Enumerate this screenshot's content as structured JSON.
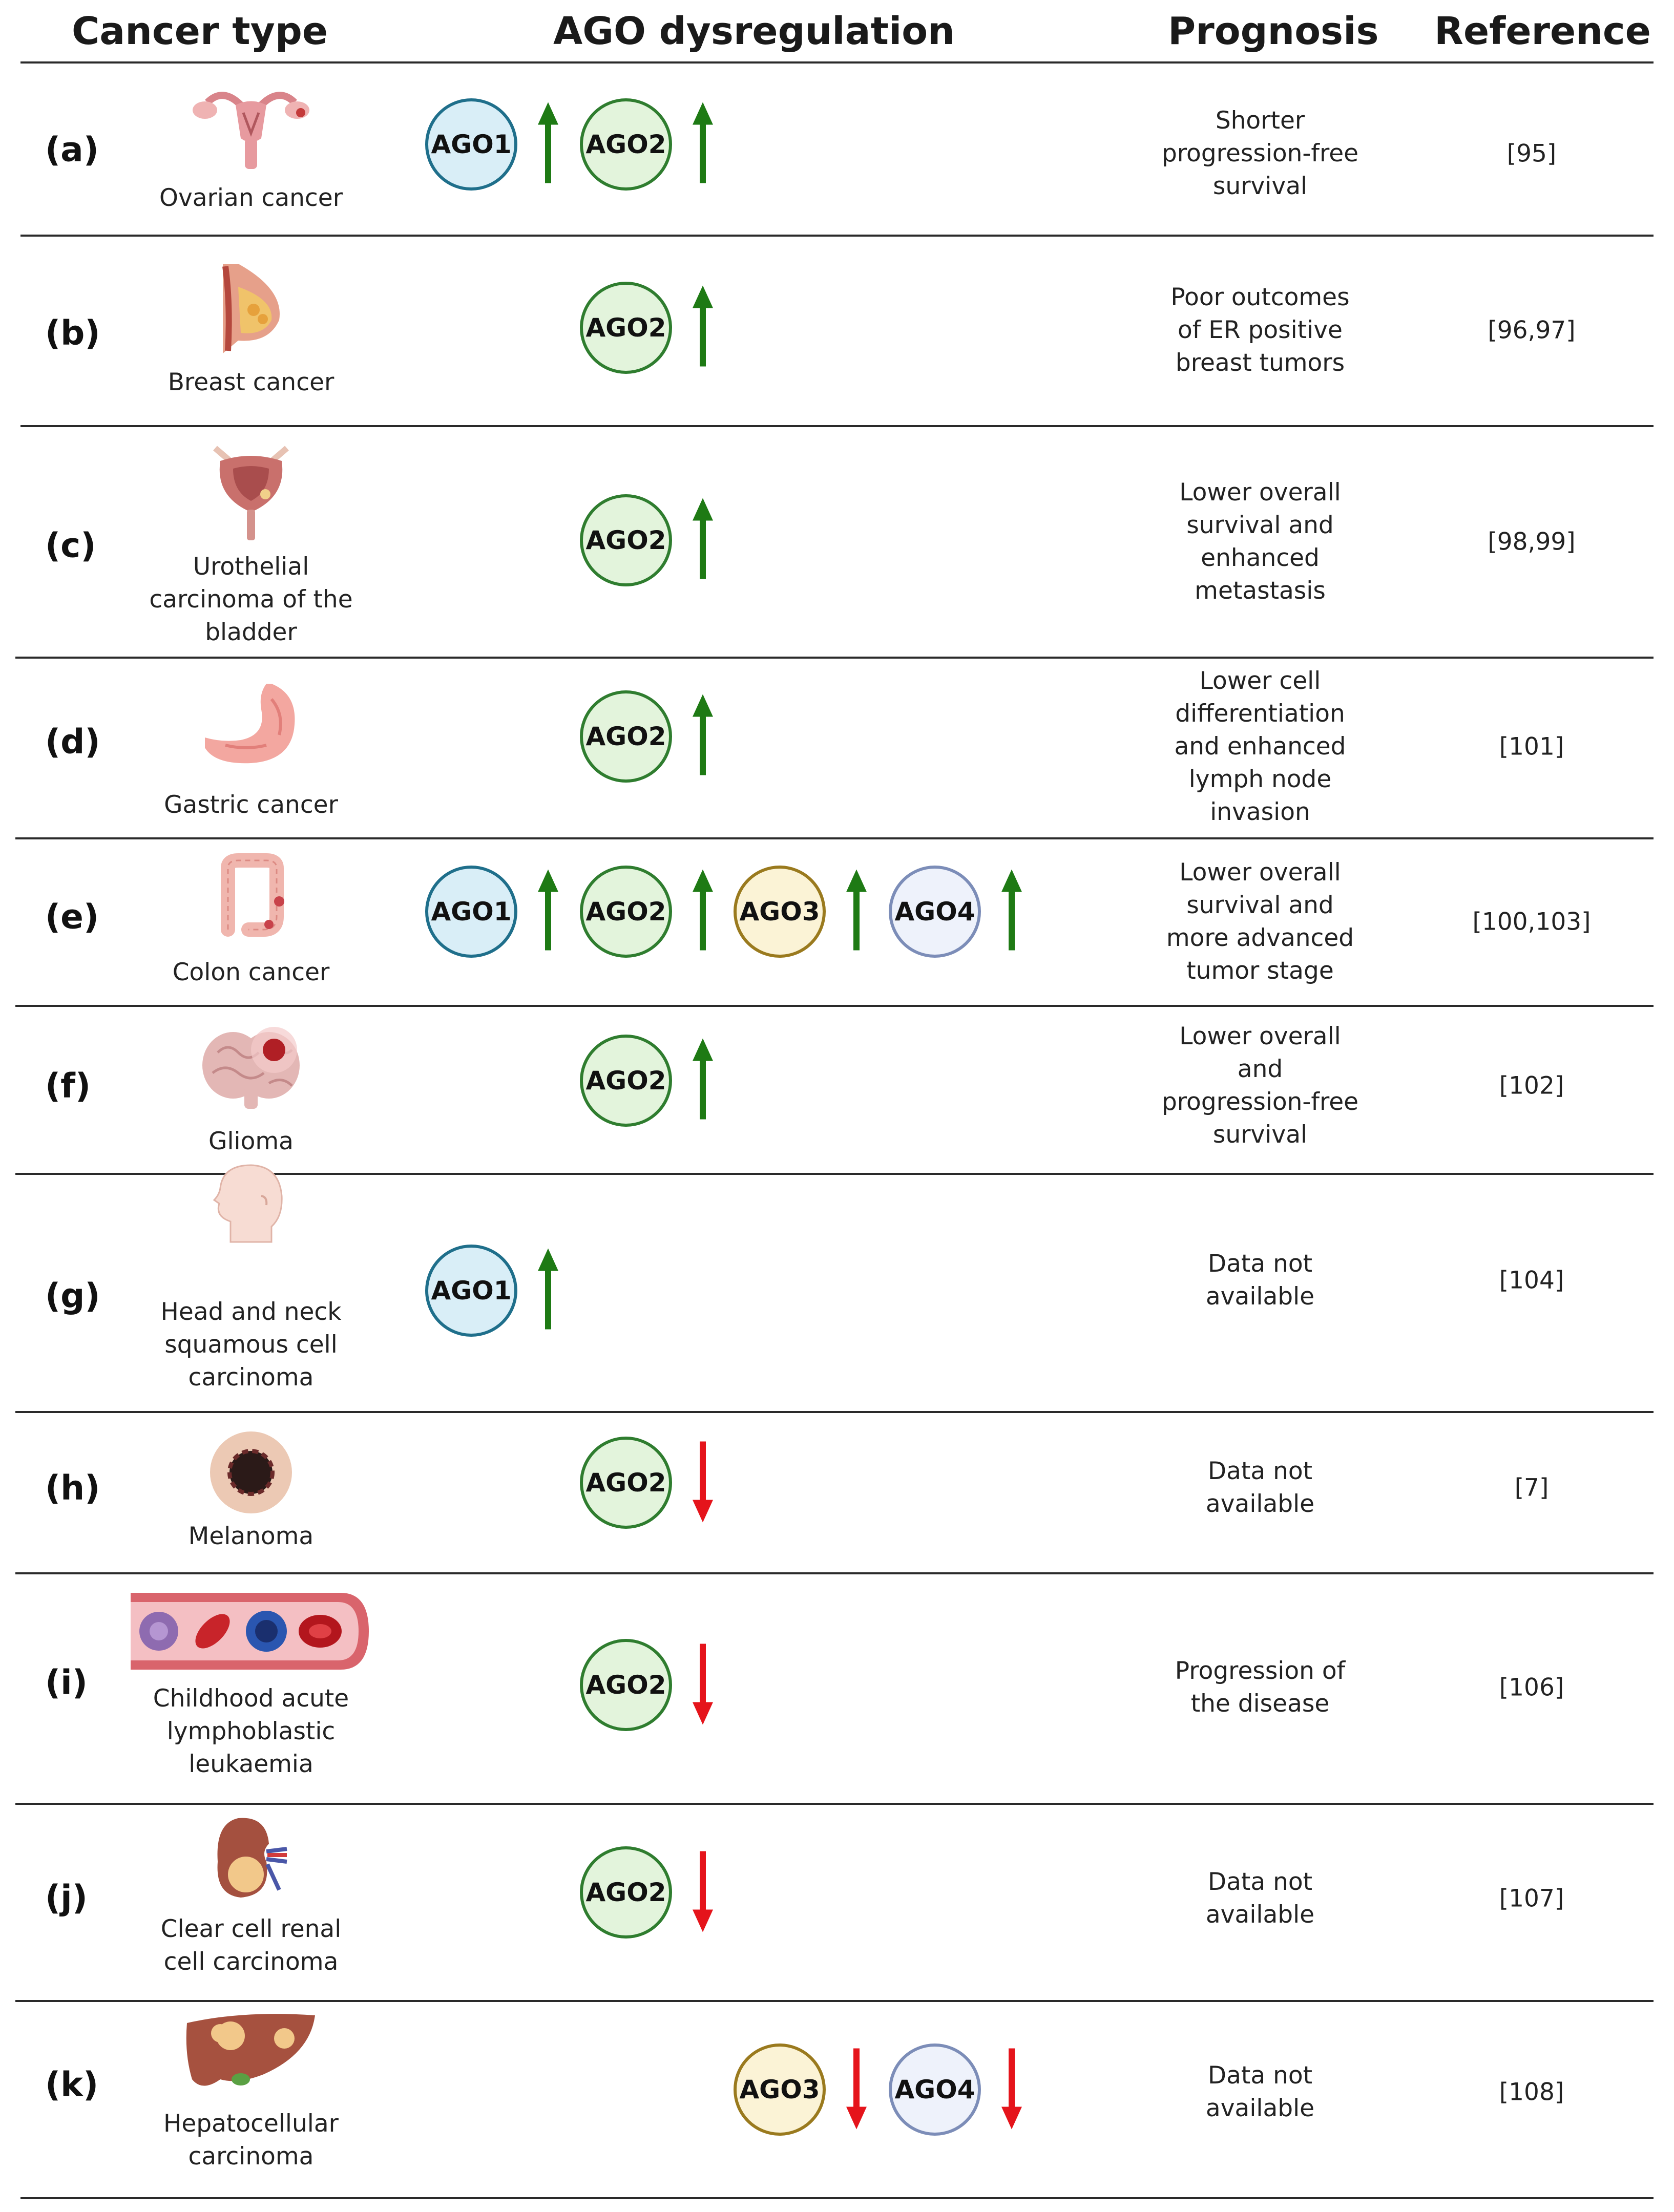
{
  "headers": {
    "cancer_type": "Cancer type",
    "ago": "AGO dysregulation",
    "prognosis": "Prognosis",
    "reference": "Reference"
  },
  "colors": {
    "AGO1": {
      "fill": "#d9eef7",
      "stroke": "#1f6f8b"
    },
    "AGO2": {
      "fill": "#e3f4dc",
      "stroke": "#2f7d2f"
    },
    "AGO3": {
      "fill": "#fbf3d6",
      "stroke": "#9a7a1e"
    },
    "AGO4": {
      "fill": "#eef2fb",
      "stroke": "#7c8db8"
    },
    "up": "#1e7a14",
    "down": "#e5141b"
  },
  "rows": [
    {
      "letter": "(a)",
      "name": "Ovarian cancer",
      "icon": "ovary-icon",
      "agos": [
        {
          "label": "AGO1",
          "dir": "up"
        },
        {
          "label": "AGO2",
          "dir": "up"
        }
      ],
      "prognosis": "Shorter\nprogression-free\nsurvival",
      "reference": "[95]"
    },
    {
      "letter": "(b)",
      "name": "Breast cancer",
      "icon": "breast-icon",
      "agos": [
        {
          "label": "AGO2",
          "dir": "up"
        }
      ],
      "prognosis": "Poor outcomes\nof ER positive\nbreast tumors",
      "reference": "[96,97]"
    },
    {
      "letter": "(c)",
      "name": "Urothelial\ncarcinoma of the\nbladder",
      "icon": "bladder-icon",
      "agos": [
        {
          "label": "AGO2",
          "dir": "up"
        }
      ],
      "prognosis": "Lower overall\nsurvival and\nenhanced\nmetastasis",
      "reference": "[98,99]"
    },
    {
      "letter": "(d)",
      "name": "Gastric cancer",
      "icon": "stomach-icon",
      "agos": [
        {
          "label": "AGO2",
          "dir": "up"
        }
      ],
      "prognosis": "Lower cell\ndifferentiation\nand enhanced\nlymph node\ninvasion",
      "reference": "[101]"
    },
    {
      "letter": "(e)",
      "name": "Colon cancer",
      "icon": "colon-icon",
      "agos": [
        {
          "label": "AGO1",
          "dir": "up"
        },
        {
          "label": "AGO2",
          "dir": "up"
        },
        {
          "label": "AGO3",
          "dir": "up"
        },
        {
          "label": "AGO4",
          "dir": "up"
        }
      ],
      "prognosis": "Lower overall\nsurvival and\nmore advanced\ntumor stage",
      "reference": "[100,103]"
    },
    {
      "letter": "(f)",
      "name": "Glioma",
      "icon": "brain-icon",
      "agos": [
        {
          "label": "AGO2",
          "dir": "up"
        }
      ],
      "prognosis": "Lower overall\nand\nprogression-free\nsurvival",
      "reference": "[102]"
    },
    {
      "letter": "(g)",
      "name": "Head and neck\nsquamous cell\ncarcinoma",
      "icon": "head-icon",
      "agos": [
        {
          "label": "AGO1",
          "dir": "up"
        }
      ],
      "prognosis": "Data not\navailable",
      "reference": "[104]"
    },
    {
      "letter": "(h)",
      "name": "Melanoma",
      "icon": "melanoma-icon",
      "agos": [
        {
          "label": "AGO2",
          "dir": "down"
        }
      ],
      "prognosis": "Data not\navailable",
      "reference": "[7]"
    },
    {
      "letter": "(i)",
      "name": "Childhood acute\nlymphoblastic\nleukaemia",
      "icon": "blood-vessel-icon",
      "agos": [
        {
          "label": "AGO2",
          "dir": "down"
        }
      ],
      "prognosis": "Progression of\nthe disease",
      "reference": "[106]"
    },
    {
      "letter": "(j)",
      "name": "Clear cell renal\ncell carcinoma",
      "icon": "kidney-icon",
      "agos": [
        {
          "label": "AGO2",
          "dir": "down"
        }
      ],
      "prognosis": "Data not\navailable",
      "reference": "[107]"
    },
    {
      "letter": "(k)",
      "name": "Hepatocellular\ncarcinoma",
      "icon": "liver-icon",
      "agos": [
        {
          "label": "AGO3",
          "dir": "down"
        },
        {
          "label": "AGO4",
          "dir": "down"
        }
      ],
      "prognosis": "Data not\navailable",
      "reference": "[108]"
    }
  ]
}
